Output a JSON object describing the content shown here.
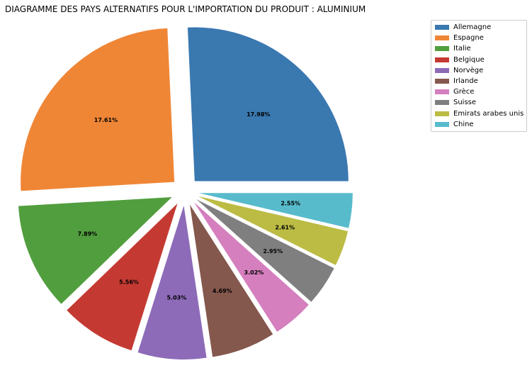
{
  "chart_data": {
    "type": "pie",
    "title": "DIAGRAMME DES PAYS ALTERNATIFS POUR L'IMPORTATION DU PRODUIT : ALUMINIUM",
    "legend_position": "top-right",
    "slices": [
      {
        "label": "Allemagne",
        "value": 17.98,
        "pct_label": "17.98%",
        "color": "#3a78b0"
      },
      {
        "label": "Espagne",
        "value": 17.61,
        "pct_label": "17.61%",
        "color": "#ef8636"
      },
      {
        "label": "Italie",
        "value": 7.89,
        "pct_label": "7.89%",
        "color": "#519e3e"
      },
      {
        "label": "Belgique",
        "value": 5.56,
        "pct_label": "5.56%",
        "color": "#c43a32"
      },
      {
        "label": "Norvège",
        "value": 5.03,
        "pct_label": "5.03%",
        "color": "#8d6bb8"
      },
      {
        "label": "Irlande",
        "value": 4.69,
        "pct_label": "4.69%",
        "color": "#85584d"
      },
      {
        "label": "Grèce",
        "value": 3.02,
        "pct_label": "3.02%",
        "color": "#d57fbe"
      },
      {
        "label": "Suisse",
        "value": 2.95,
        "pct_label": "2.95%",
        "color": "#7f7f7f"
      },
      {
        "label": "Emirats arabes unis",
        "value": 2.61,
        "pct_label": "2.61%",
        "color": "#bcbc45"
      },
      {
        "label": "Chine",
        "value": 2.55,
        "pct_label": "2.55%",
        "color": "#58bbcc"
      }
    ]
  }
}
